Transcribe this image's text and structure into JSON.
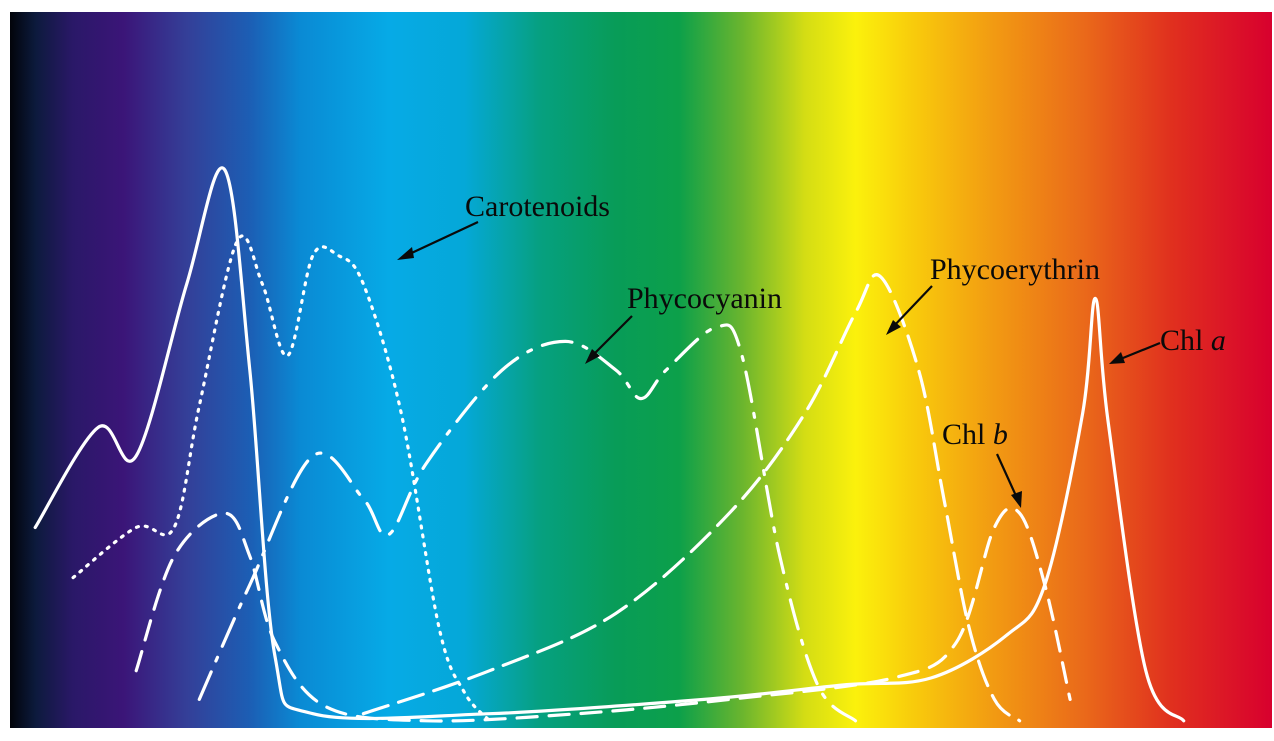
{
  "chart_data": {
    "type": "line",
    "title": "",
    "xlabel": "",
    "ylabel": "",
    "background": "visible spectrum gradient",
    "series": [
      {
        "name": "Chl a",
        "style": "solid",
        "points": [
          [
            0.02,
            0.28
          ],
          [
            0.07,
            0.42
          ],
          [
            0.1,
            0.38
          ],
          [
            0.14,
            0.62
          ],
          [
            0.17,
            0.78
          ],
          [
            0.19,
            0.5
          ],
          [
            0.21,
            0.1
          ],
          [
            0.24,
            0.02
          ],
          [
            0.38,
            0.02
          ],
          [
            0.55,
            0.04
          ],
          [
            0.66,
            0.06
          ],
          [
            0.73,
            0.07
          ],
          [
            0.79,
            0.13
          ],
          [
            0.82,
            0.2
          ],
          [
            0.85,
            0.44
          ],
          [
            0.86,
            0.6
          ],
          [
            0.87,
            0.43
          ],
          [
            0.9,
            0.08
          ],
          [
            0.93,
            0.01
          ]
        ]
      },
      {
        "name": "Chl b",
        "style": "dashed",
        "points": [
          [
            0.1,
            0.08
          ],
          [
            0.13,
            0.24
          ],
          [
            0.17,
            0.3
          ],
          [
            0.19,
            0.24
          ],
          [
            0.21,
            0.12
          ],
          [
            0.25,
            0.03
          ],
          [
            0.33,
            0.01
          ],
          [
            0.45,
            0.02
          ],
          [
            0.57,
            0.04
          ],
          [
            0.7,
            0.07
          ],
          [
            0.75,
            0.12
          ],
          [
            0.78,
            0.28
          ],
          [
            0.8,
            0.3
          ],
          [
            0.82,
            0.2
          ],
          [
            0.84,
            0.04
          ]
        ]
      },
      {
        "name": "Carotenoids",
        "style": "dotted",
        "points": [
          [
            0.05,
            0.21
          ],
          [
            0.1,
            0.28
          ],
          [
            0.13,
            0.28
          ],
          [
            0.15,
            0.45
          ],
          [
            0.18,
            0.68
          ],
          [
            0.2,
            0.62
          ],
          [
            0.22,
            0.52
          ],
          [
            0.24,
            0.66
          ],
          [
            0.26,
            0.66
          ],
          [
            0.28,
            0.62
          ],
          [
            0.31,
            0.44
          ],
          [
            0.34,
            0.14
          ],
          [
            0.36,
            0.05
          ],
          [
            0.38,
            0.01
          ]
        ]
      },
      {
        "name": "Phycocyanin",
        "style": "dash-dot",
        "points": [
          [
            0.15,
            0.04
          ],
          [
            0.19,
            0.2
          ],
          [
            0.24,
            0.38
          ],
          [
            0.28,
            0.32
          ],
          [
            0.3,
            0.27
          ],
          [
            0.33,
            0.37
          ],
          [
            0.39,
            0.5
          ],
          [
            0.44,
            0.54
          ],
          [
            0.48,
            0.5
          ],
          [
            0.5,
            0.46
          ],
          [
            0.52,
            0.5
          ],
          [
            0.56,
            0.56
          ],
          [
            0.58,
            0.52
          ],
          [
            0.61,
            0.24
          ],
          [
            0.64,
            0.06
          ],
          [
            0.67,
            0.01
          ]
        ]
      },
      {
        "name": "Phycoerythrin",
        "style": "long-dash",
        "points": [
          [
            0.28,
            0.02
          ],
          [
            0.38,
            0.08
          ],
          [
            0.48,
            0.16
          ],
          [
            0.57,
            0.3
          ],
          [
            0.63,
            0.44
          ],
          [
            0.67,
            0.58
          ],
          [
            0.69,
            0.63
          ],
          [
            0.72,
            0.5
          ],
          [
            0.74,
            0.32
          ],
          [
            0.76,
            0.14
          ],
          [
            0.78,
            0.04
          ],
          [
            0.8,
            0.01
          ]
        ]
      }
    ]
  },
  "labels": {
    "carotenoids": "Carotenoids",
    "phycocyanin": "Phycocyanin",
    "phycoerythrin": "Phycoerythrin",
    "chl_a_prefix": "Chl ",
    "chl_a_suffix": "a",
    "chl_b_prefix": "Chl ",
    "chl_b_suffix": "b"
  }
}
